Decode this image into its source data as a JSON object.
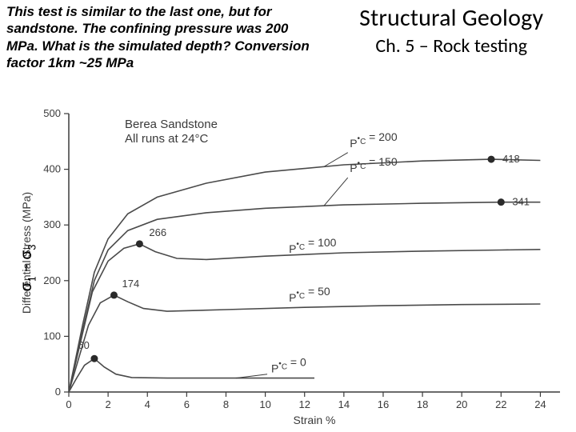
{
  "header": {
    "prompt": "This test is similar to the last one, but for sandstone. The confining pressure was 200 MPa. What is the simulated depth? Conversion factor 1km ~25 MPa",
    "course_title": "Structural Geology",
    "chapter": "Ch. 5 – Rock testing"
  },
  "yaxis_override_html": "σ<sub>1</sub> – σ<sub>3</sub>",
  "chart": {
    "type": "line",
    "plot_title_lines": [
      "Berea Sandstone",
      "All runs at 24°C"
    ],
    "title_fontsize": 15,
    "xlabel": "Strain %",
    "ylabel": "Differential Stress (MPa)",
    "label_fontsize": 14,
    "tick_fontsize": 13,
    "xlim": [
      0,
      25
    ],
    "ylim": [
      0,
      500
    ],
    "xtick_step": 2,
    "ytick_step": 100,
    "axis_color": "#3a3a3a",
    "tick_len": 6,
    "curve_color": "#4a4a4a",
    "curve_width": 1.6,
    "marker_color": "#2a2a2a",
    "marker_radius": 4.5,
    "series": [
      {
        "pc": 0,
        "pc_label": "P_C = 0",
        "pc_label_xy": [
          10.2,
          32
        ],
        "peak_label": "60",
        "peak_xy": [
          1.3,
          60
        ],
        "points": [
          [
            0,
            0
          ],
          [
            0.4,
            25
          ],
          [
            0.8,
            48
          ],
          [
            1.3,
            60
          ],
          [
            1.8,
            45
          ],
          [
            2.4,
            32
          ],
          [
            3.2,
            26
          ],
          [
            5,
            25
          ],
          [
            8,
            25
          ],
          [
            12.5,
            25
          ]
        ]
      },
      {
        "pc": 50,
        "pc_label": "P_C = 50",
        "pc_label_xy": [
          11,
          155
        ],
        "peak_label": "174",
        "peak_xy": [
          2.3,
          174
        ],
        "points": [
          [
            0,
            0
          ],
          [
            0.5,
            60
          ],
          [
            1.0,
            120
          ],
          [
            1.6,
            160
          ],
          [
            2.3,
            174
          ],
          [
            3.0,
            162
          ],
          [
            3.8,
            150
          ],
          [
            5,
            145
          ],
          [
            8,
            148
          ],
          [
            12,
            152
          ],
          [
            16,
            155
          ],
          [
            20,
            157
          ],
          [
            24,
            158
          ]
        ]
      },
      {
        "pc": 100,
        "pc_label": "P_C = 100",
        "pc_label_xy": [
          11,
          245
        ],
        "peak_label": "266",
        "peak_xy": [
          3.6,
          266
        ],
        "points": [
          [
            0,
            0
          ],
          [
            0.6,
            90
          ],
          [
            1.2,
            180
          ],
          [
            2.0,
            235
          ],
          [
            2.8,
            258
          ],
          [
            3.6,
            266
          ],
          [
            4.4,
            252
          ],
          [
            5.5,
            240
          ],
          [
            7,
            238
          ],
          [
            10,
            244
          ],
          [
            14,
            250
          ],
          [
            18,
            253
          ],
          [
            22,
            255
          ],
          [
            24,
            256
          ]
        ]
      },
      {
        "pc": 150,
        "pc_label": "P_C = 150",
        "pc_label_xy": [
          14.2,
          385
        ],
        "peak_label": "341",
        "peak_xy": [
          22,
          341
        ],
        "points": [
          [
            0,
            0
          ],
          [
            0.7,
            110
          ],
          [
            1.3,
            200
          ],
          [
            2.0,
            255
          ],
          [
            3.0,
            290
          ],
          [
            4.5,
            310
          ],
          [
            7,
            322
          ],
          [
            10,
            330
          ],
          [
            14,
            336
          ],
          [
            18,
            339
          ],
          [
            22,
            341
          ],
          [
            24,
            341
          ]
        ]
      },
      {
        "pc": 200,
        "pc_label": "P_C = 200",
        "pc_label_xy": [
          14.2,
          432
        ],
        "peak_label": "418",
        "peak_xy": [
          21.5,
          418
        ],
        "points": [
          [
            0,
            0
          ],
          [
            0.7,
            120
          ],
          [
            1.3,
            215
          ],
          [
            2.0,
            275
          ],
          [
            3.0,
            320
          ],
          [
            4.5,
            350
          ],
          [
            7,
            375
          ],
          [
            10,
            395
          ],
          [
            14,
            408
          ],
          [
            18,
            415
          ],
          [
            21.5,
            418
          ],
          [
            24,
            416
          ]
        ]
      }
    ],
    "pc_labels_with_leader": [
      {
        "text": "P",
        "sub": "C",
        "rest": " = 200",
        "tx": 14.3,
        "ty": 440,
        "lx1": 14.2,
        "ly1": 430,
        "lx2": 13,
        "ly2": 405
      },
      {
        "text": "P",
        "sub": "C",
        "rest": " = 150",
        "tx": 14.3,
        "ty": 395,
        "lx1": 14.2,
        "ly1": 385,
        "lx2": 13,
        "ly2": 335
      },
      {
        "text": "P",
        "sub": "C",
        "rest": " = 100",
        "tx": 11.2,
        "ty": 250,
        "lx1": 0,
        "ly1": 0,
        "lx2": 0,
        "ly2": 0
      },
      {
        "text": "P",
        "sub": "C",
        "rest": " = 50",
        "tx": 11.2,
        "ty": 162,
        "lx1": 0,
        "ly1": 0,
        "lx2": 0,
        "ly2": 0
      },
      {
        "text": "P",
        "sub": "C",
        "rest": " = 0",
        "tx": 10.3,
        "ty": 35,
        "lx1": 10.1,
        "ly1": 32,
        "lx2": 8.5,
        "ly2": 25
      }
    ]
  }
}
